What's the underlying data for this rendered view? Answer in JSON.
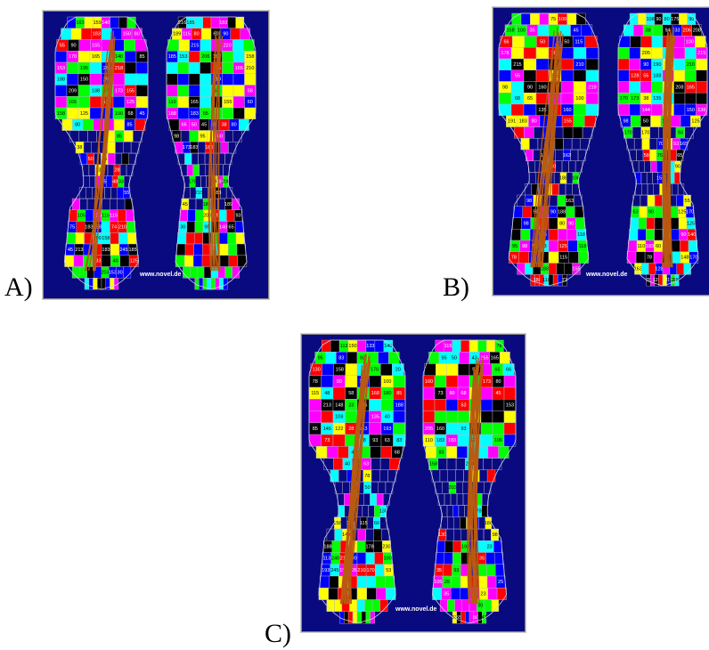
{
  "figure_labels": [
    "A)",
    "B)",
    "C)"
  ],
  "watermark": "www.novel.de",
  "colors": {
    "background": "#0a0a80",
    "grid_line": "#b8b8d0",
    "trajectory": "#b85a10",
    "palette": [
      "#ff0000",
      "#ffff00",
      "#00ff00",
      "#00ffff",
      "#0000ff",
      "#ff00ff",
      "#000000"
    ]
  },
  "panels": [
    {
      "id": "A",
      "left_numbers": [
        163,
        159,
        140,
        183,
        150,
        80,
        55,
        90,
        155,
        170,
        165,
        140,
        85,
        153,
        195,
        206,
        218,
        188,
        150,
        283,
        209,
        188,
        175,
        173,
        155,
        165,
        183,
        125,
        158,
        125,
        100,
        68,
        45,
        80,
        85,
        85,
        38,
        50,
        35,
        23,
        28,
        45,
        48,
        33,
        55,
        105,
        125,
        115,
        115,
        75,
        183,
        158,
        74,
        210,
        190,
        158,
        45,
        213,
        183,
        245,
        185,
        183,
        40,
        125,
        203,
        153,
        30
      ],
      "right_numbers": [
        216,
        185,
        183,
        189,
        115,
        80,
        60,
        90,
        215,
        220,
        185,
        153,
        206,
        188,
        158,
        186,
        165,
        210,
        210,
        58,
        58,
        110,
        165,
        155,
        60,
        188,
        183,
        55,
        65,
        50,
        45,
        38,
        38,
        80,
        98,
        95,
        80,
        173,
        183,
        185,
        175,
        130,
        185,
        200,
        215,
        183,
        45,
        180,
        189,
        200,
        215,
        93,
        30,
        95,
        140,
        65
      ]
    },
    {
      "id": "B",
      "left_numbers": [
        75,
        100,
        158,
        100,
        35,
        45,
        66,
        50,
        50,
        115,
        178,
        186,
        215,
        210,
        55,
        218,
        98,
        90,
        160,
        219,
        68,
        65,
        100,
        135,
        160,
        191,
        183,
        80,
        155,
        153,
        163,
        175,
        150,
        188,
        108,
        98,
        163,
        90,
        90,
        188,
        98,
        80,
        90,
        98,
        118,
        95,
        98,
        75,
        23,
        125,
        118,
        78,
        115,
        188,
        155,
        188,
        118,
        73,
        210,
        210,
        145,
        150,
        190,
        225,
        203,
        206,
        153,
        23,
        93,
        183,
        123
      ],
      "right_numbers": [
        198,
        90,
        80,
        175,
        90,
        38,
        94,
        33,
        206,
        208,
        100,
        205,
        215,
        90,
        190,
        198,
        210,
        128,
        55,
        188,
        208,
        165,
        170,
        173,
        38,
        135,
        144,
        150,
        138,
        98,
        50,
        115,
        125,
        170,
        170,
        93,
        70,
        93,
        165,
        58,
        75,
        65,
        90,
        155,
        55,
        53,
        90,
        125,
        170,
        125,
        28,
        90,
        140,
        110,
        183,
        60,
        78,
        148,
        170,
        163,
        128,
        78,
        120,
        215,
        125,
        190,
        188,
        65,
        193,
        25,
        220,
        85,
        195,
        113,
        50,
        80
      ]
    },
    {
      "id": "C",
      "left_numbers": [
        113,
        150,
        133,
        140,
        95,
        83,
        93,
        130,
        158,
        170,
        20,
        78,
        90,
        105,
        100,
        115,
        48,
        58,
        168,
        180,
        85,
        213,
        148,
        23,
        195,
        188,
        108,
        135,
        40,
        85,
        145,
        122,
        28,
        163,
        193,
        73,
        28,
        93,
        63,
        83,
        45,
        68,
        40,
        63,
        78,
        50,
        130,
        158,
        183,
        115,
        60,
        140,
        188,
        178,
        230,
        113,
        240,
        210,
        200,
        100,
        193,
        245,
        158,
        205,
        210,
        170,
        53
      ],
      "right_numbers": [
        115,
        78,
        95,
        50,
        43,
        155,
        165,
        56,
        65,
        66,
        160,
        173,
        80,
        73,
        80,
        68,
        45,
        53,
        128,
        153,
        205,
        160,
        93,
        75,
        110,
        183,
        183,
        200,
        106,
        83,
        158,
        280,
        203,
        78,
        180,
        130,
        98,
        195,
        23,
        35,
        35,
        93,
        105,
        25,
        25,
        35,
        23,
        30,
        53,
        55,
        50,
        43,
        45,
        78,
        83,
        48,
        75,
        118,
        110,
        123,
        180,
        138,
        68,
        150,
        185,
        190,
        173,
        105,
        183,
        38,
        183,
        183,
        210,
        65,
        55,
        165,
        213,
        288
      ]
    }
  ]
}
